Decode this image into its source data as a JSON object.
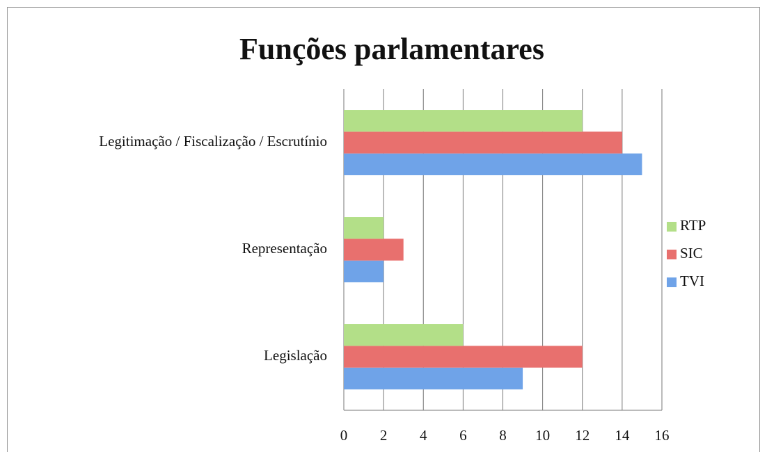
{
  "chart_data": {
    "type": "bar",
    "orientation": "horizontal",
    "title": "Funções parlamentares",
    "categories": [
      "Legislação",
      "Representação",
      "Legitimação / Fiscalização / Escrutínio"
    ],
    "series": [
      {
        "name": "TVI",
        "color": "#6fa3e8",
        "values": [
          9,
          2,
          15
        ]
      },
      {
        "name": "SIC",
        "color": "#e8706e",
        "values": [
          12,
          3,
          14
        ]
      },
      {
        "name": "RTP",
        "color": "#b3df88",
        "values": [
          6,
          2,
          12
        ]
      }
    ],
    "xlim": [
      0,
      16
    ],
    "xticks": [
      0,
      2,
      4,
      6,
      8,
      10,
      12,
      14,
      16
    ],
    "grid": true,
    "legend": "right"
  }
}
